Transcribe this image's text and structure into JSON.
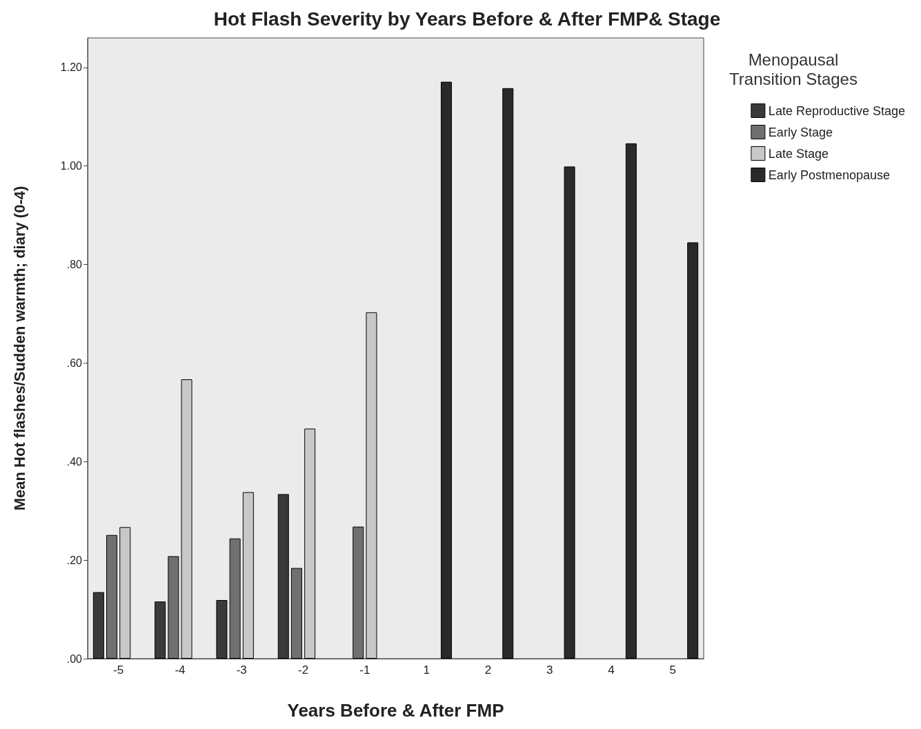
{
  "chart_data": {
    "type": "bar",
    "title": "Hot Flash Severity by Years Before & After FMP& Stage",
    "xlabel": "Years Before & After FMP",
    "ylabel": "Mean Hot flashes/Sudden warmth; diary (0-4)",
    "legend_title": "Menopausal Transition Stages",
    "categories": [
      "-5",
      "-4",
      "-3",
      "-2",
      "-1",
      "1",
      "2",
      "3",
      "4",
      "5"
    ],
    "series": [
      {
        "name": "Late Reproductive Stage",
        "color": "#3a3a3a",
        "values": [
          0.135,
          0.116,
          0.119,
          0.334,
          null,
          null,
          null,
          null,
          null,
          null
        ]
      },
      {
        "name": "Early Stage",
        "color": "#707070",
        "values": [
          0.251,
          0.208,
          0.244,
          0.184,
          0.268,
          null,
          null,
          null,
          null,
          null
        ]
      },
      {
        "name": "Late Stage",
        "color": "#c8c8c8",
        "values": [
          0.267,
          0.567,
          0.338,
          0.467,
          0.703,
          null,
          null,
          null,
          null,
          null
        ]
      },
      {
        "name": "Early Postmenopause",
        "color": "#2a2a2a",
        "values": [
          null,
          null,
          null,
          null,
          null,
          1.171,
          1.158,
          0.999,
          1.046,
          0.845
        ]
      }
    ],
    "ylim": [
      0,
      1.26
    ],
    "yticks": [
      {
        "value": 0,
        "label": ".00"
      },
      {
        "value": 0.2,
        "label": ".20"
      },
      {
        "value": 0.4,
        "label": ".40"
      },
      {
        "value": 0.6,
        "label": ".60"
      },
      {
        "value": 0.8,
        "label": ".80"
      },
      {
        "value": 1.0,
        "label": "1.00"
      },
      {
        "value": 1.2,
        "label": "1.20"
      }
    ],
    "grid": false,
    "legend": "right"
  }
}
